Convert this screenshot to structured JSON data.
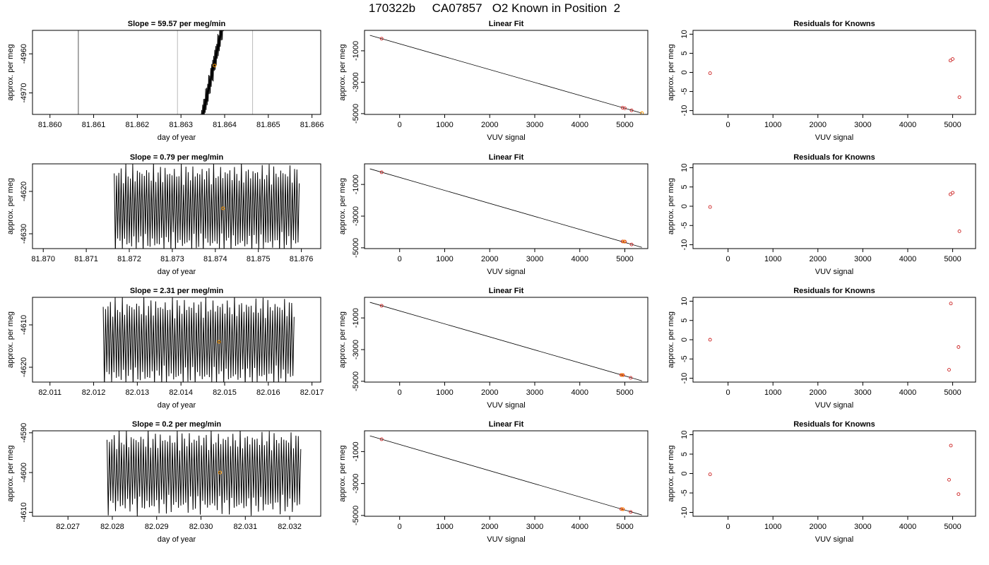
{
  "page_title": "170322b     CA07857   O2 Known in Position  2",
  "colors": {
    "trace": "#000000",
    "mark": "#ff9900",
    "point": "#cc2222",
    "fit_line": "#000000",
    "vline_dark": "#555555",
    "vline_light": "#bbbbbb",
    "frame": "#000000"
  },
  "chart_data": [
    {
      "type": "line",
      "title": "Slope =  59.57  per meg/min",
      "xlabel": "day of year",
      "ylabel": "approx. per meg",
      "xlim": [
        81.8596,
        81.8662
      ],
      "ylim": [
        -4975.5,
        -4954
      ],
      "xticks": [
        "81.860",
        "81.861",
        "81.862",
        "81.863",
        "81.864",
        "81.865",
        "81.866"
      ],
      "xtick_values": [
        81.86,
        81.861,
        81.862,
        81.863,
        81.864,
        81.865,
        81.866
      ],
      "yticks": [
        "-4970",
        "-4960"
      ],
      "ytick_values": [
        -4970,
        -4960
      ],
      "trace": {
        "start": 81.86345,
        "end": 81.86405,
        "center_start": -4978,
        "center_end": -4948,
        "amplitude": 3.5,
        "cycles": 26
      },
      "vlines": [
        {
          "x": 81.86065,
          "style": "dark"
        },
        {
          "x": 81.86292,
          "style": "light"
        },
        {
          "x": 81.86464,
          "style": "light"
        }
      ],
      "mark": {
        "x": 81.86377,
        "y": -4963
      }
    },
    {
      "type": "scatter",
      "title": "Linear Fit",
      "xlabel": "VUV signal",
      "ylabel": "approx. per meg",
      "xlim": [
        -780,
        5510
      ],
      "ylim": [
        -5050,
        300
      ],
      "xticks": [
        "0",
        "1000",
        "2000",
        "3000",
        "4000",
        "5000"
      ],
      "xtick_values": [
        0,
        1000,
        2000,
        3000,
        4000,
        5000
      ],
      "yticks": [
        "-5000",
        "-3000",
        "-1000"
      ],
      "ytick_values": [
        -5000,
        -3000,
        -1000
      ],
      "fit_line": [
        [
          -660,
          -15
        ],
        [
          5380,
          -4970
        ]
      ],
      "points": [
        [
          -400,
          -230
        ],
        [
          4950,
          -4625
        ],
        [
          5000,
          -4660
        ],
        [
          5150,
          -4790
        ]
      ],
      "mark": {
        "x": 5380,
        "y": -4965
      }
    },
    {
      "type": "scatter",
      "title": "Residuals for Knowns",
      "xlabel": "VUV signal",
      "ylabel": "approx. per meg",
      "xlim": [
        -780,
        5510
      ],
      "ylim": [
        -11,
        11
      ],
      "xticks": [
        "0",
        "1000",
        "2000",
        "3000",
        "4000",
        "5000"
      ],
      "xtick_values": [
        0,
        1000,
        2000,
        3000,
        4000,
        5000
      ],
      "yticks": [
        "-10",
        "-5",
        "0",
        "5",
        "10"
      ],
      "ytick_values": [
        -10,
        -5,
        0,
        5,
        10
      ],
      "points": [
        [
          -400,
          -0.2
        ],
        [
          4950,
          3.1
        ],
        [
          5000,
          3.5
        ],
        [
          5150,
          -6.5
        ]
      ]
    },
    {
      "type": "line",
      "title": "Slope =  0.79  per meg/min",
      "xlabel": "day of year",
      "ylabel": "approx. per meg",
      "xlim": [
        81.86975,
        81.87645
      ],
      "ylim": [
        -4633.5,
        -4613.5
      ],
      "xticks": [
        "81.870",
        "81.871",
        "81.872",
        "81.873",
        "81.874",
        "81.875",
        "81.876"
      ],
      "xtick_values": [
        81.87,
        81.871,
        81.872,
        81.873,
        81.874,
        81.875,
        81.876
      ],
      "yticks": [
        "-4630",
        "-4620"
      ],
      "ytick_values": [
        -4630,
        -4620
      ],
      "trace": {
        "start": 81.87165,
        "end": 81.87595,
        "center_start": -4624,
        "center_end": -4624,
        "amplitude": 11,
        "cycles": 80
      },
      "vlines": [],
      "mark": {
        "x": 81.87418,
        "y": -4624
      }
    },
    {
      "type": "scatter",
      "title": "Linear Fit",
      "xlabel": "VUV signal",
      "ylabel": "approx. per meg",
      "xlim": [
        -780,
        5510
      ],
      "ylim": [
        -5050,
        300
      ],
      "xticks": [
        "0",
        "1000",
        "2000",
        "3000",
        "4000",
        "5000"
      ],
      "xtick_values": [
        0,
        1000,
        2000,
        3000,
        4000,
        5000
      ],
      "yticks": [
        "-5000",
        "-3000",
        "-1000"
      ],
      "ytick_values": [
        -5000,
        -3000,
        -1000
      ],
      "fit_line": [
        [
          -660,
          -15
        ],
        [
          5380,
          -4970
        ]
      ],
      "points": [
        [
          -400,
          -230
        ],
        [
          4950,
          -4600
        ],
        [
          5000,
          -4610
        ],
        [
          5150,
          -4790
        ]
      ],
      "mark": {
        "x": 4980,
        "y": -4605
      }
    },
    {
      "type": "scatter",
      "title": "Residuals for Knowns",
      "xlabel": "VUV signal",
      "ylabel": "approx. per meg",
      "xlim": [
        -780,
        5510
      ],
      "ylim": [
        -11,
        11
      ],
      "xticks": [
        "0",
        "1000",
        "2000",
        "3000",
        "4000",
        "5000"
      ],
      "xtick_values": [
        0,
        1000,
        2000,
        3000,
        4000,
        5000
      ],
      "yticks": [
        "-10",
        "-5",
        "0",
        "5",
        "10"
      ],
      "ytick_values": [
        -10,
        -5,
        0,
        5,
        10
      ],
      "points": [
        [
          -400,
          -0.2
        ],
        [
          4950,
          3.1
        ],
        [
          5000,
          3.5
        ],
        [
          5150,
          -6.5
        ]
      ]
    },
    {
      "type": "line",
      "title": "Slope =  2.31  per meg/min",
      "xlabel": "day of year",
      "ylabel": "approx. per meg",
      "xlim": [
        82.0106,
        82.0172
      ],
      "ylim": [
        -4623.5,
        -4603.5
      ],
      "xticks": [
        "82.011",
        "82.012",
        "82.013",
        "82.014",
        "82.015",
        "82.016",
        "82.017"
      ],
      "xtick_values": [
        82.011,
        82.012,
        82.013,
        82.014,
        82.015,
        82.016,
        82.017
      ],
      "yticks": [
        "-4620",
        "-4610"
      ],
      "ytick_values": [
        -4620,
        -4610
      ],
      "trace": {
        "start": 82.01222,
        "end": 82.01659,
        "center_start": -4614,
        "center_end": -4614,
        "amplitude": 11,
        "cycles": 80
      },
      "vlines": [],
      "mark": {
        "x": 82.01487,
        "y": -4614
      }
    },
    {
      "type": "scatter",
      "title": "Linear Fit",
      "xlabel": "VUV signal",
      "ylabel": "approx. per meg",
      "xlim": [
        -780,
        5510
      ],
      "ylim": [
        -5050,
        300
      ],
      "xticks": [
        "0",
        "1000",
        "2000",
        "3000",
        "4000",
        "5000"
      ],
      "xtick_values": [
        0,
        1000,
        2000,
        3000,
        4000,
        5000
      ],
      "yticks": [
        "-5000",
        "-3000",
        "-1000"
      ],
      "ytick_values": [
        -5000,
        -3000,
        -1000
      ],
      "fit_line": [
        [
          -660,
          -15
        ],
        [
          5380,
          -4970
        ]
      ],
      "points": [
        [
          -400,
          -230
        ],
        [
          4920,
          -4600
        ],
        [
          4960,
          -4610
        ],
        [
          5130,
          -4780
        ]
      ],
      "mark": {
        "x": 4940,
        "y": -4605
      }
    },
    {
      "type": "scatter",
      "title": "Residuals for Knowns",
      "xlabel": "VUV signal",
      "ylabel": "approx. per meg",
      "xlim": [
        -780,
        5510
      ],
      "ylim": [
        -11,
        11
      ],
      "xticks": [
        "0",
        "1000",
        "2000",
        "3000",
        "4000",
        "5000"
      ],
      "xtick_values": [
        0,
        1000,
        2000,
        3000,
        4000,
        5000
      ],
      "yticks": [
        "-10",
        "-5",
        "0",
        "5",
        "10"
      ],
      "ytick_values": [
        -10,
        -5,
        0,
        5,
        10
      ],
      "points": [
        [
          -400,
          0
        ],
        [
          4960,
          9.4
        ],
        [
          5130,
          -1.9
        ],
        [
          4920,
          -7.8
        ]
      ]
    },
    {
      "type": "line",
      "title": "Slope =  0.2  per meg/min",
      "xlabel": "day of year",
      "ylabel": "approx. per meg",
      "xlim": [
        82.0262,
        82.0327
      ],
      "ylim": [
        -4611,
        -4589.5
      ],
      "xticks": [
        "82.027",
        "82.028",
        "82.029",
        "82.030",
        "82.031",
        "82.032"
      ],
      "xtick_values": [
        82.027,
        82.028,
        82.029,
        82.03,
        82.031,
        82.032
      ],
      "yticks": [
        "-4610",
        "-4600",
        "-4590"
      ],
      "ytick_values": [
        -4610,
        -4600,
        -4590
      ],
      "trace": {
        "start": 82.02788,
        "end": 82.03225,
        "center_start": -4600,
        "center_end": -4600,
        "amplitude": 11,
        "cycles": 80
      },
      "vlines": [],
      "mark": {
        "x": 82.03043,
        "y": -4600
      }
    },
    {
      "type": "scatter",
      "title": "Linear Fit",
      "xlabel": "VUV signal",
      "ylabel": "approx. per meg",
      "xlim": [
        -780,
        5510
      ],
      "ylim": [
        -5050,
        300
      ],
      "xticks": [
        "0",
        "1000",
        "2000",
        "3000",
        "4000",
        "5000"
      ],
      "xtick_values": [
        0,
        1000,
        2000,
        3000,
        4000,
        5000
      ],
      "yticks": [
        "-5000",
        "-3000",
        "-1000"
      ],
      "ytick_values": [
        -5000,
        -3000,
        -1000
      ],
      "fit_line": [
        [
          -660,
          -15
        ],
        [
          5380,
          -4970
        ]
      ],
      "points": [
        [
          -400,
          -230
        ],
        [
          4920,
          -4600
        ],
        [
          4960,
          -4610
        ],
        [
          5130,
          -4780
        ]
      ],
      "mark": {
        "x": 4950,
        "y": -4605
      }
    },
    {
      "type": "scatter",
      "title": "Residuals for Knowns",
      "xlabel": "VUV signal",
      "ylabel": "approx. per meg",
      "xlim": [
        -780,
        5510
      ],
      "ylim": [
        -11,
        11
      ],
      "xticks": [
        "0",
        "1000",
        "2000",
        "3000",
        "4000",
        "5000"
      ],
      "xtick_values": [
        0,
        1000,
        2000,
        3000,
        4000,
        5000
      ],
      "yticks": [
        "-10",
        "-5",
        "0",
        "5",
        "10"
      ],
      "ytick_values": [
        -10,
        -5,
        0,
        5,
        10
      ],
      "points": [
        [
          -400,
          -0.2
        ],
        [
          4960,
          7.2
        ],
        [
          4920,
          -1.6
        ],
        [
          5130,
          -5.3
        ]
      ]
    }
  ]
}
